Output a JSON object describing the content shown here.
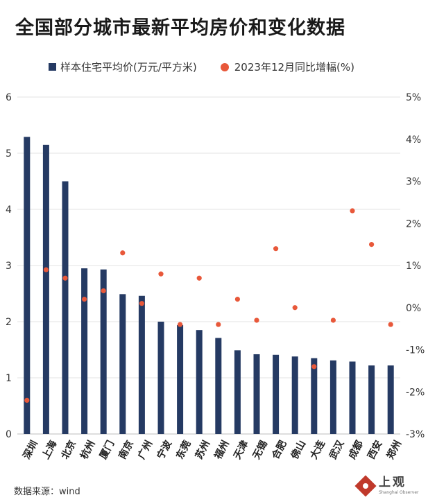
{
  "header": {
    "title": "全国部分城市最新平均房价和变化数据"
  },
  "legend": {
    "bar_label": "样本住宅平均价(万元/平方米)",
    "dot_label": "2023年12月同比增幅(%)"
  },
  "colors": {
    "bar": "#253a63",
    "dot": "#e8583a",
    "grid": "#e3e3e3",
    "text": "#333333"
  },
  "chart_data": {
    "type": "bar",
    "title": "全国部分城市最新平均房价和变化数据",
    "categories": [
      "深圳",
      "上海",
      "北京",
      "杭州",
      "厦门",
      "南京",
      "广州",
      "宁波",
      "东莞",
      "苏州",
      "福州",
      "天津",
      "无锡",
      "合肥",
      "佛山",
      "大连",
      "武汉",
      "成都",
      "西安",
      "郑州"
    ],
    "series": [
      {
        "name": "样本住宅平均价(万元/平方米)",
        "type": "bar",
        "axis": "left",
        "values": [
          5.29,
          5.15,
          4.5,
          2.95,
          2.93,
          2.49,
          2.46,
          2.0,
          1.94,
          1.85,
          1.71,
          1.49,
          1.42,
          1.41,
          1.38,
          1.35,
          1.31,
          1.29,
          1.22,
          1.22
        ]
      },
      {
        "name": "2023年12月同比增幅(%)",
        "type": "scatter",
        "axis": "right",
        "values": [
          -2.2,
          0.9,
          0.7,
          0.2,
          0.4,
          1.3,
          0.1,
          0.8,
          -0.4,
          0.7,
          -0.4,
          0.2,
          -0.3,
          1.4,
          0.0,
          -1.4,
          -0.3,
          2.3,
          1.5,
          -0.4
        ]
      }
    ],
    "left_axis": {
      "ylim": [
        0,
        6
      ],
      "ticks": [
        "0",
        "1",
        "2",
        "3",
        "4",
        "5",
        "6"
      ]
    },
    "right_axis": {
      "ylim": [
        -3,
        5
      ],
      "ticks": [
        "-3%",
        "-2%",
        "-1%",
        "0%",
        "1%",
        "2%",
        "3%",
        "4%",
        "5%"
      ]
    },
    "grid": true,
    "legend_position": "top"
  },
  "footer": {
    "source": "数据来源：wind",
    "logo_text": "上观",
    "logo_subtext": "Shanghai Observer"
  }
}
